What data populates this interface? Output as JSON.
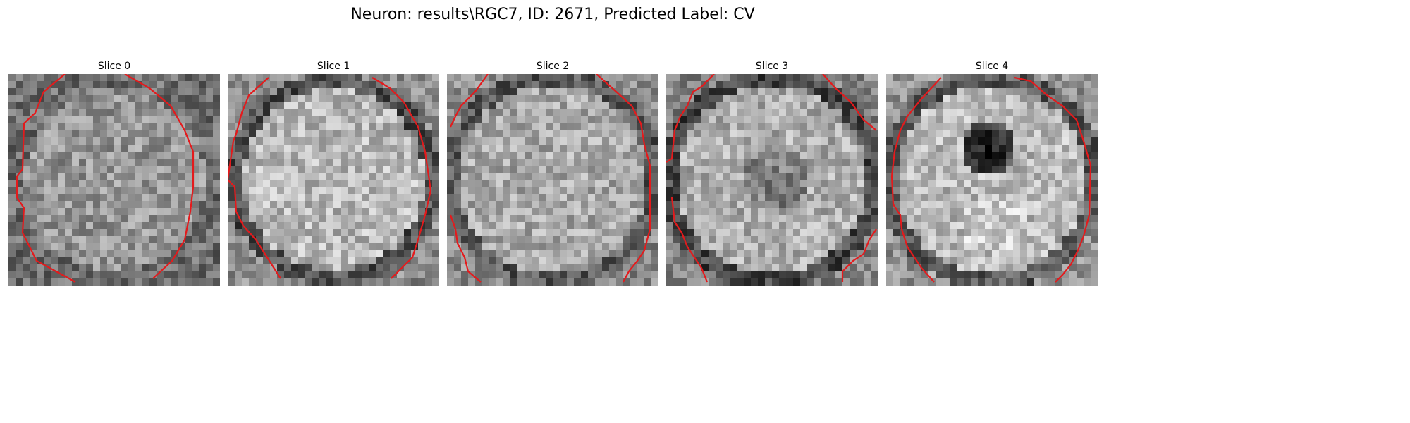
{
  "figure": {
    "title": "Neuron: results\\RGC7, ID: 2671, Predicted Label: CV"
  },
  "slices": [
    {
      "title": "Slice 0"
    },
    {
      "title": "Slice 1"
    },
    {
      "title": "Slice 2"
    },
    {
      "title": "Slice 3"
    },
    {
      "title": "Slice 4"
    }
  ],
  "colors": {
    "contour": "#e41a1c",
    "background": "#ffffff"
  }
}
